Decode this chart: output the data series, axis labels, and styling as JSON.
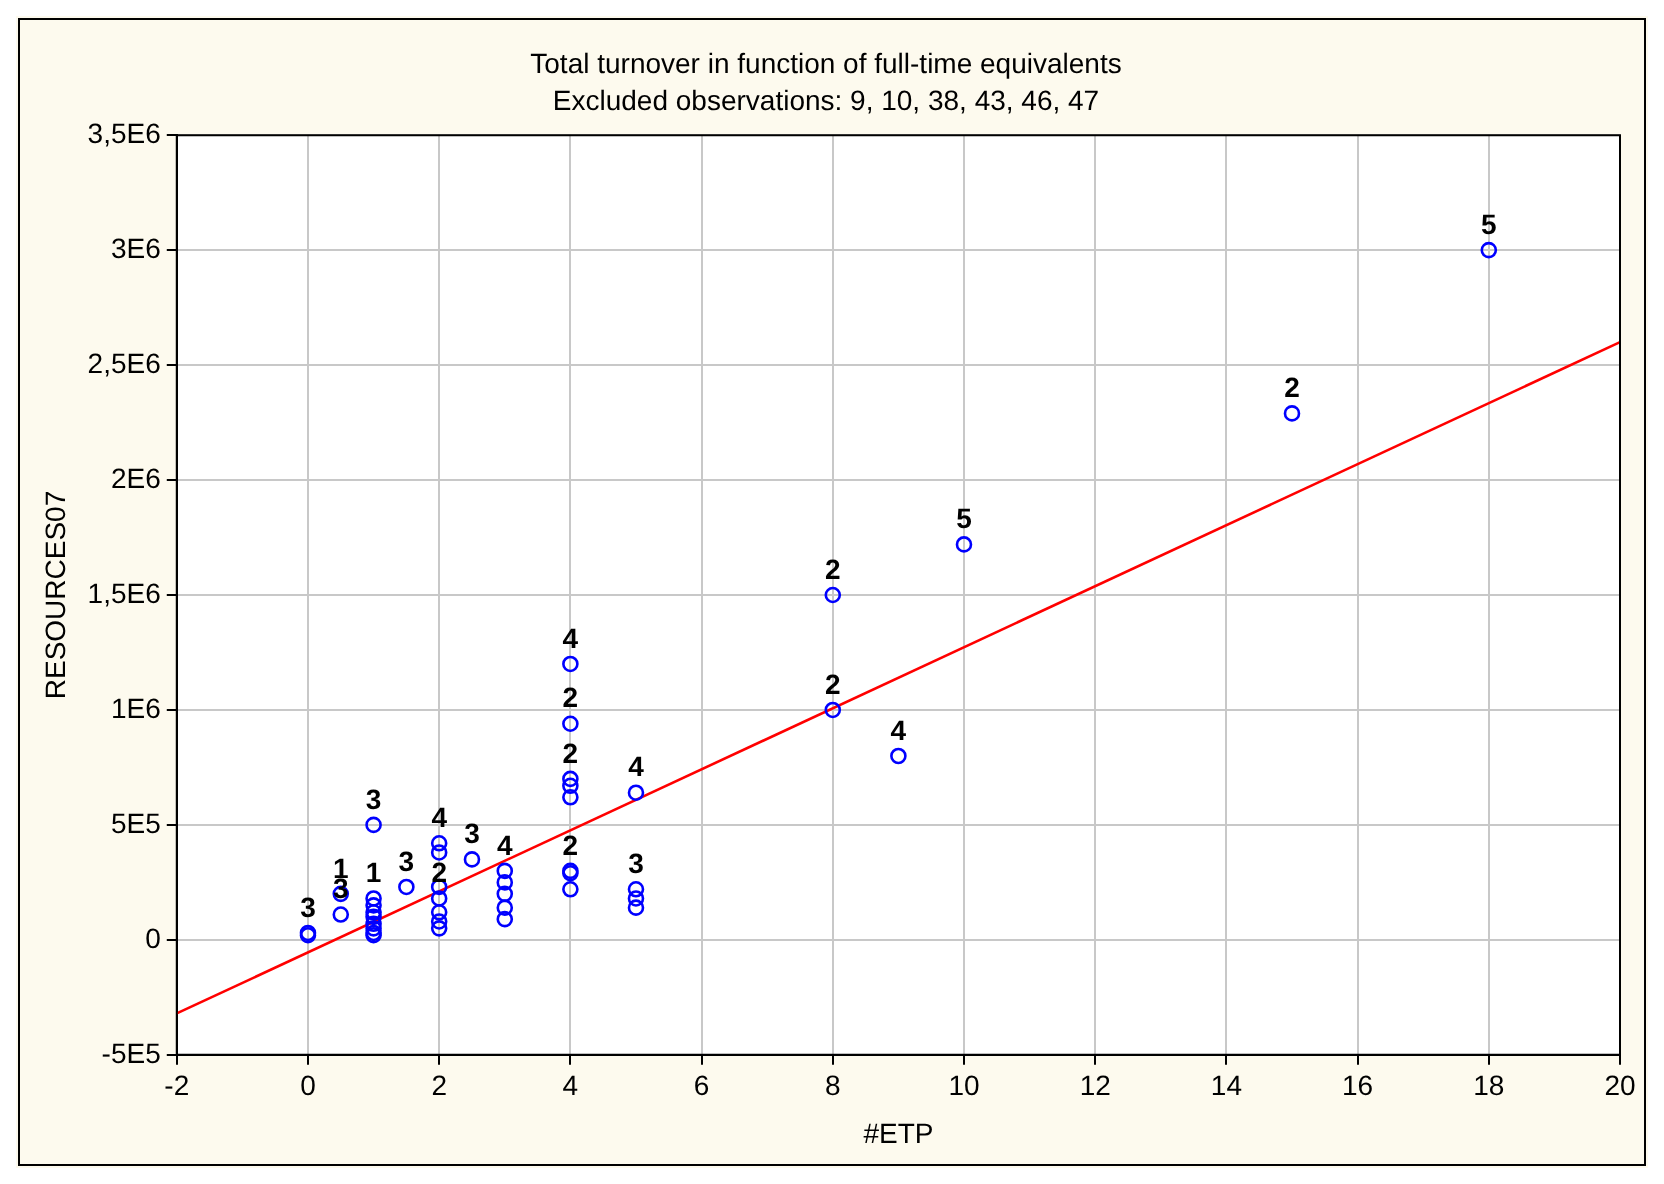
{
  "chart_data": {
    "type": "scatter",
    "title": "Total turnover in function of full-time equivalents",
    "subtitle": "Excluded observations: 9, 10, 38, 43, 46, 47",
    "xlabel": "#ETP",
    "ylabel": "RESOURCES07",
    "series": [
      {
        "color": "#0000ff",
        "marker": "circle",
        "x": [
          0,
          0,
          0.5,
          0.5,
          1,
          1,
          1,
          1,
          1,
          1,
          1,
          1,
          1,
          1.5,
          2,
          2,
          2,
          2,
          2,
          2,
          2,
          2.5,
          3,
          3,
          3,
          3,
          3,
          4,
          4,
          4,
          4,
          4,
          4,
          4,
          4,
          5,
          5,
          5,
          5,
          8,
          8,
          9,
          10,
          15,
          18
        ],
        "values": [
          20000,
          30000,
          200000,
          110000,
          500000,
          180000,
          150000,
          120000,
          100000,
          70000,
          50000,
          30000,
          20000,
          230000,
          420000,
          380000,
          230000,
          180000,
          120000,
          80000,
          50000,
          350000,
          300000,
          250000,
          200000,
          140000,
          90000,
          1200000,
          940000,
          700000,
          670000,
          620000,
          300000,
          290000,
          220000,
          640000,
          220000,
          180000,
          140000,
          1500000,
          1000000,
          800000,
          1720000,
          2290000,
          3000000
        ]
      },
      {
        "type": "line",
        "color": "#ff0000",
        "marker": "none",
        "line_style": "solid",
        "x": [
          -2,
          20
        ],
        "values": [
          -320000,
          2600000
        ]
      }
    ],
    "xlim": [
      -2,
      20
    ],
    "xticks": [
      -2,
      0,
      2,
      4,
      6,
      8,
      10,
      12,
      14,
      16,
      18,
      20
    ],
    "ylim": [
      -500000,
      3500000
    ],
    "yticks": [
      {
        "value": -500000,
        "label": "-5E5"
      },
      0,
      {
        "value": 500000,
        "label": "5E5"
      },
      {
        "value": 1000000,
        "label": "1E6"
      },
      {
        "value": 1500000,
        "label": "1,5E6"
      },
      {
        "value": 2000000,
        "label": "2E6"
      },
      {
        "value": 2500000,
        "label": "2,5E6"
      },
      {
        "value": 3000000,
        "label": "3E6"
      },
      {
        "value": 3500000,
        "label": "3,5E6"
      }
    ],
    "grid": true,
    "legend": false,
    "annotations": [
      {
        "text": "3",
        "x": 0,
        "y": 30000
      },
      {
        "text": "1",
        "x": 0.5,
        "y": 200000
      },
      {
        "text": "3",
        "x": 0.5,
        "y": 110000
      },
      {
        "text": "3",
        "x": 1,
        "y": 500000
      },
      {
        "text": "1",
        "x": 1,
        "y": 180000
      },
      {
        "text": "3",
        "x": 1.5,
        "y": 230000
      },
      {
        "text": "4",
        "x": 2,
        "y": 420000
      },
      {
        "text": "2",
        "x": 2,
        "y": 180000
      },
      {
        "text": "3",
        "x": 2.5,
        "y": 350000
      },
      {
        "text": "4",
        "x": 3,
        "y": 300000
      },
      {
        "text": "4",
        "x": 4,
        "y": 1200000
      },
      {
        "text": "2",
        "x": 4,
        "y": 940000
      },
      {
        "text": "2",
        "x": 4,
        "y": 700000
      },
      {
        "text": "2",
        "x": 4,
        "y": 300000
      },
      {
        "text": "4",
        "x": 5,
        "y": 640000
      },
      {
        "text": "3",
        "x": 5,
        "y": 220000
      },
      {
        "text": "2",
        "x": 8,
        "y": 1500000
      },
      {
        "text": "2",
        "x": 8,
        "y": 1000000
      },
      {
        "text": "4",
        "x": 9,
        "y": 800000
      },
      {
        "text": "5",
        "x": 10,
        "y": 1720000
      },
      {
        "text": "2",
        "x": 15,
        "y": 2290000
      },
      {
        "text": "5",
        "x": 18,
        "y": 3000000
      }
    ]
  }
}
